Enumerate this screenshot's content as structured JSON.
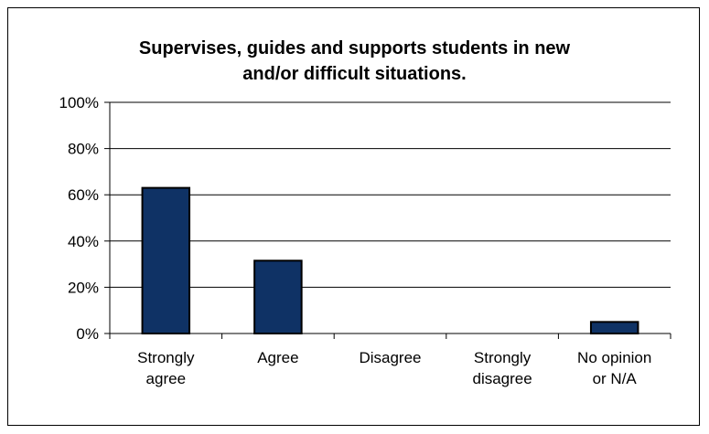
{
  "chart_data": {
    "type": "bar",
    "title_lines": [
      "Supervises, guides and supports students in new",
      "and/or difficult situations."
    ],
    "categories": [
      [
        "Strongly",
        "agree"
      ],
      [
        "Agree"
      ],
      [
        "Disagree"
      ],
      [
        "Strongly",
        "disagree"
      ],
      [
        "No opinion",
        "or N/A"
      ]
    ],
    "values": [
      63,
      31.5,
      0,
      0,
      5
    ],
    "y_ticks": [
      "0%",
      "20%",
      "40%",
      "60%",
      "80%",
      "100%"
    ],
    "ylim": [
      0,
      100
    ],
    "grid": true,
    "legend": "none",
    "bar_color": "#0f3265",
    "bar_border_color": "#000000"
  }
}
